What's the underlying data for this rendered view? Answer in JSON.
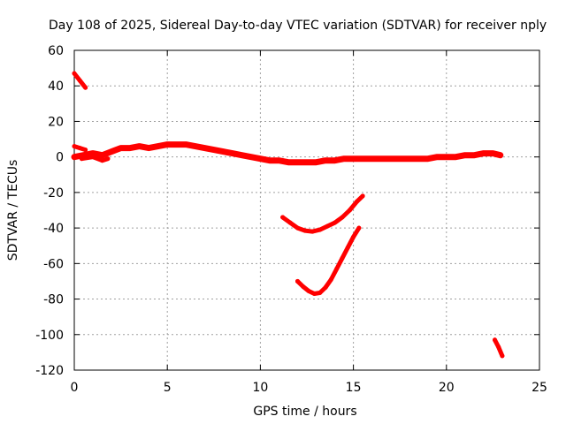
{
  "chart_data": {
    "type": "line",
    "title": "Day 108 of 2025, Sidereal Day-to-day VTEC variation (SDTVAR) for receiver nply",
    "xlabel": "GPS time / hours",
    "ylabel": "SDTVAR / TECUs",
    "xlim": [
      0,
      25
    ],
    "ylim": [
      -120,
      60
    ],
    "xticks": [
      0,
      5,
      10,
      15,
      20,
      25
    ],
    "yticks": [
      -120,
      -100,
      -80,
      -60,
      -40,
      -20,
      0,
      20,
      40,
      60
    ],
    "grid": true,
    "color": "#ff0000",
    "series": [
      {
        "name": "main-track",
        "x": [
          0,
          0.5,
          1,
          1.5,
          2,
          2.5,
          3,
          3.5,
          4,
          4.5,
          5,
          5.5,
          6,
          6.5,
          7,
          7.5,
          8,
          8.5,
          9,
          9.5,
          10,
          10.5,
          11,
          11.5,
          12,
          12.5,
          13,
          13.5,
          14,
          14.5,
          15,
          15.5,
          16,
          16.5,
          17,
          17.5,
          18,
          18.5,
          19,
          19.5,
          20,
          20.5,
          21,
          21.5,
          22,
          22.5,
          22.9
        ],
        "y": [
          0,
          1,
          2,
          1,
          3,
          5,
          5,
          6,
          5,
          6,
          7,
          7,
          7,
          6,
          5,
          4,
          3,
          2,
          1,
          0,
          -1,
          -2,
          -2,
          -3,
          -3,
          -3,
          -3,
          -2,
          -2,
          -1,
          -1,
          -1,
          -1,
          -1,
          -1,
          -1,
          -1,
          -1,
          -1,
          0,
          0,
          0,
          1,
          1,
          2,
          2,
          1
        ]
      },
      {
        "name": "start-segment-upper",
        "x": [
          0,
          0.3,
          0.6
        ],
        "y": [
          6,
          5,
          4
        ]
      },
      {
        "name": "start-segment-lower",
        "x": [
          0.4,
          1.0,
          1.5,
          1.8
        ],
        "y": [
          -1,
          0,
          -2,
          -1
        ]
      },
      {
        "name": "early-spike",
        "x": [
          0,
          0.3,
          0.6
        ],
        "y": [
          47,
          43,
          39
        ]
      },
      {
        "name": "bowl-upper",
        "x": [
          11.2,
          11.6,
          12,
          12.4,
          12.8,
          13.2,
          13.6,
          14,
          14.4,
          14.8,
          15.2,
          15.5
        ],
        "y": [
          -34,
          -37,
          -40,
          -41.5,
          -42,
          -41,
          -39,
          -37,
          -34,
          -30,
          -25,
          -22
        ]
      },
      {
        "name": "bowl-lower",
        "x": [
          12,
          12.3,
          12.6,
          12.9,
          13.2,
          13.5,
          13.8,
          14.1,
          14.4,
          14.7,
          15,
          15.3
        ],
        "y": [
          -70,
          -73,
          -75.5,
          -77,
          -76.5,
          -73.5,
          -69,
          -63,
          -57,
          -51,
          -45,
          -40
        ]
      },
      {
        "name": "late-spike",
        "x": [
          22.6,
          22.8,
          23
        ],
        "y": [
          -103,
          -107,
          -112
        ]
      }
    ]
  }
}
